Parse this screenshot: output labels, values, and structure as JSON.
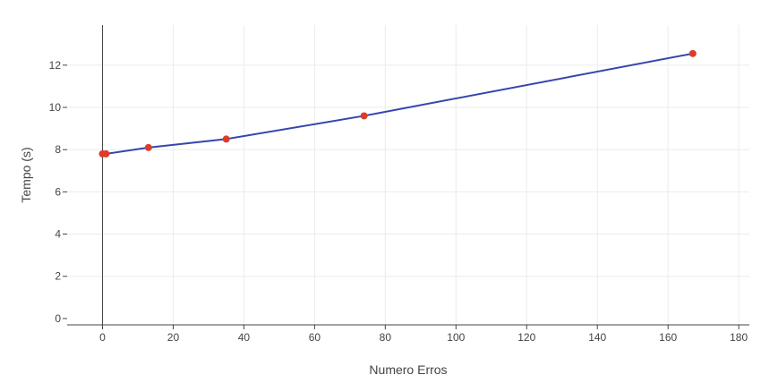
{
  "chart_data": {
    "type": "line",
    "title": "",
    "xlabel": "Numero Erros",
    "ylabel": "Tempo (s)",
    "xlim": [
      -10,
      183
    ],
    "ylim": [
      -0.3,
      13.9
    ],
    "x_ticks": [
      0,
      20,
      40,
      60,
      80,
      100,
      120,
      140,
      160,
      180
    ],
    "y_ticks": [
      0,
      2,
      4,
      6,
      8,
      10,
      12
    ],
    "grid": true,
    "legend": "none",
    "series": [
      {
        "x": [
          0,
          1,
          13,
          35,
          74,
          167
        ],
        "y": [
          7.8,
          7.8,
          8.1,
          8.5,
          9.6,
          12.55
        ],
        "mode": "lines+markers"
      }
    ],
    "colors": {
      "line": "#3645ad",
      "marker": "#de3c28",
      "grid": "#ebebeb",
      "axis": "#444444"
    }
  }
}
